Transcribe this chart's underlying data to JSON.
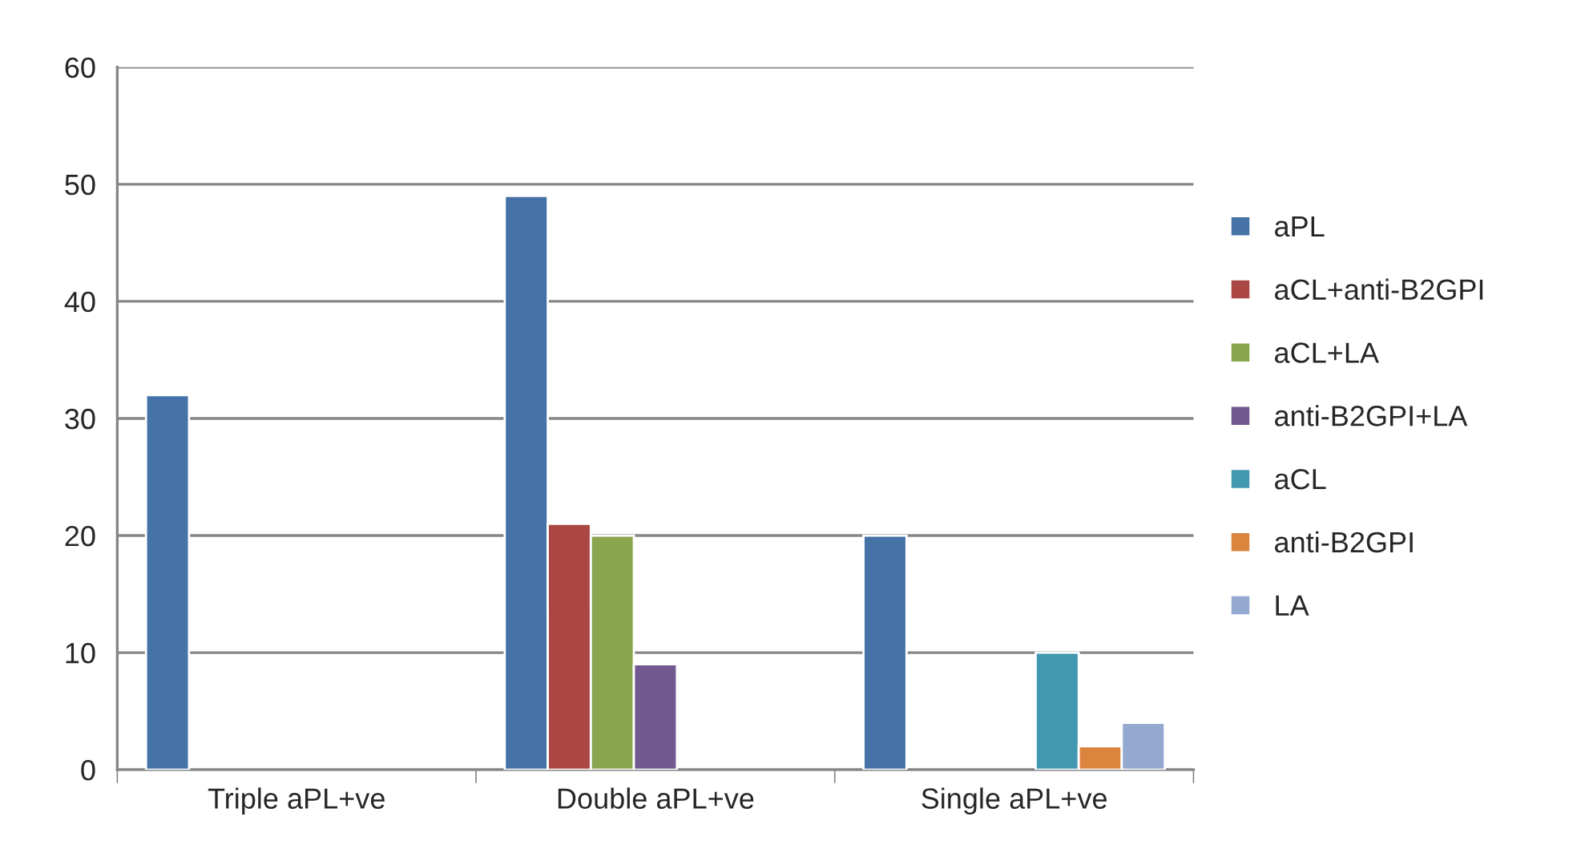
{
  "chart_data": {
    "type": "bar",
    "categories": [
      "Triple aPL+ve",
      "Double aPL+ve",
      "Single aPL+ve"
    ],
    "series": [
      {
        "name": "aPL",
        "color": "#4572a7",
        "values": [
          32,
          49,
          20
        ]
      },
      {
        "name": "aCL+anti-B2GPI",
        "color": "#aa4643",
        "values": [
          null,
          21,
          null
        ]
      },
      {
        "name": "aCL+LA",
        "color": "#89a54e",
        "values": [
          null,
          20,
          null
        ]
      },
      {
        "name": "anti-B2GPI+LA",
        "color": "#71588f",
        "values": [
          null,
          9,
          null
        ]
      },
      {
        "name": "aCL",
        "color": "#4198af",
        "values": [
          null,
          null,
          10
        ]
      },
      {
        "name": "anti-B2GPI",
        "color": "#db843d",
        "values": [
          null,
          null,
          2
        ]
      },
      {
        "name": "LA",
        "color": "#93a9cf",
        "values": [
          null,
          null,
          4
        ]
      }
    ],
    "ylim": [
      0,
      60
    ],
    "yticks": [
      0,
      10,
      20,
      30,
      40,
      50,
      60
    ],
    "grid": "y",
    "legend": "right"
  }
}
